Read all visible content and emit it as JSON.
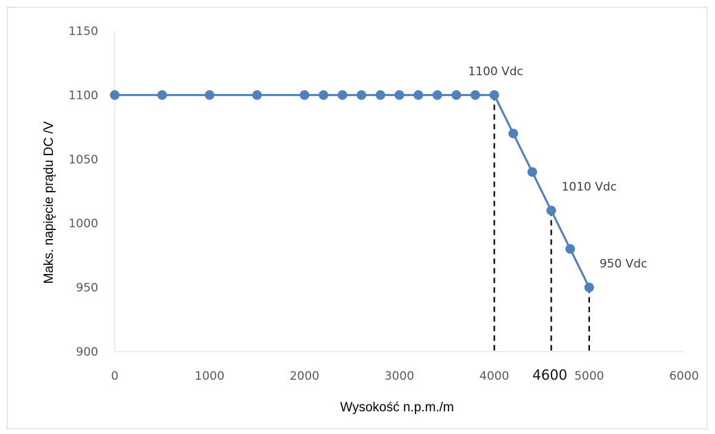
{
  "chart_data": {
    "type": "line",
    "xlabel": "Wysokość n.p.m./m",
    "ylabel": "Maks. napięcie prądu DC /V",
    "xlim": [
      0,
      6000
    ],
    "ylim": [
      900,
      1150
    ],
    "x_ticks": [
      "0",
      "1000",
      "2000",
      "3000",
      "4000",
      "5000",
      "6000"
    ],
    "y_ticks": [
      "900",
      "950",
      "1000",
      "1050",
      "1100",
      "1150"
    ],
    "grid": false,
    "color": "#4f81bd",
    "series": [
      {
        "x": [
          0,
          500,
          1000,
          1500,
          2000,
          2200,
          2400,
          2600,
          2800,
          3000,
          3200,
          3400,
          3600,
          3800,
          4000,
          4200,
          4400,
          4600,
          4800,
          5000
        ],
        "values": [
          1100,
          1100,
          1100,
          1100,
          1100,
          1100,
          1100,
          1100,
          1100,
          1100,
          1100,
          1100,
          1100,
          1100,
          1100,
          1070,
          1040,
          1010,
          980,
          950
        ]
      }
    ],
    "annotations": [
      {
        "x": 4000,
        "y": 1100,
        "text": "1100 Vdc"
      },
      {
        "x": 4600,
        "y": 1010,
        "text": "1010 Vdc"
      },
      {
        "x": 5000,
        "y": 950,
        "text": "950 Vdc"
      }
    ],
    "markers": [
      {
        "x": 4000,
        "y": 1100,
        "text": ""
      },
      {
        "x": 4600,
        "y": 1010,
        "text": "4600"
      },
      {
        "x": 5000,
        "y": 950,
        "text": ""
      }
    ]
  }
}
